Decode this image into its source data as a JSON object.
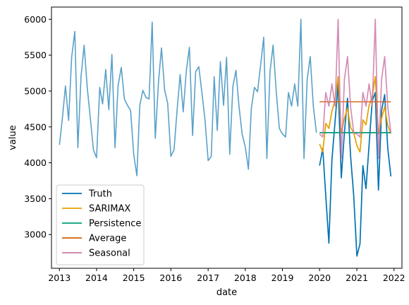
{
  "chart_data": {
    "type": "line",
    "title": "",
    "xlabel": "date",
    "ylabel": "value",
    "x_ticks": [
      "2013",
      "2014",
      "2015",
      "2016",
      "2017",
      "2018",
      "2019",
      "2020",
      "2021",
      "2022"
    ],
    "y_ticks": [
      3000,
      3500,
      4000,
      4500,
      5000,
      5500,
      6000
    ],
    "xlim": [
      "2012-10-15",
      "2022-03-20"
    ],
    "ylim": [
      2530,
      6170
    ],
    "grid": false,
    "legend_position": "lower-left",
    "series": [
      {
        "name": "",
        "color": "#5aa1c8",
        "start": "2013-01",
        "values": [
          4250,
          4640,
          5070,
          4590,
          5470,
          5830,
          4210,
          5200,
          5640,
          5050,
          4620,
          4180,
          4070,
          5050,
          4820,
          5300,
          4740,
          5510,
          4210,
          5080,
          5330,
          4890,
          4800,
          4730,
          4120,
          3820,
          4800,
          5010,
          4910,
          4890,
          5960,
          4340,
          5120,
          5600,
          5010,
          4830,
          4090,
          4180,
          4720,
          5230,
          4710,
          5290,
          5610,
          4380,
          5270,
          5340,
          4970,
          4600,
          4030,
          4090,
          5200,
          4450,
          5410,
          4800,
          5470,
          4120,
          5060,
          5290,
          4780,
          4400,
          4220,
          3910,
          4760,
          5050,
          4990,
          5360,
          5750,
          4060,
          5270,
          5640,
          5000,
          4480,
          4400,
          4360,
          4980,
          4790,
          5100,
          4790,
          6000,
          4060,
          5160,
          5480,
          4780,
          4420
        ]
      },
      {
        "name": "Truth",
        "color": "#0072b2",
        "start": "2020-01",
        "values": [
          3960,
          4200,
          3550,
          2880,
          4040,
          4580,
          5100,
          3790,
          4420,
          4900,
          4090,
          3540,
          2700,
          2870,
          3960,
          3640,
          4250,
          4860,
          4980,
          3620,
          4730,
          4950,
          4200,
          3810
        ]
      },
      {
        "name": "SARIMAX",
        "color": "#e69f00",
        "start": "2020-01",
        "values": [
          4260,
          4150,
          4550,
          4480,
          4720,
          4880,
          5200,
          4410,
          4620,
          4760,
          4490,
          4420,
          4240,
          4150,
          4600,
          4530,
          4800,
          4920,
          5200,
          4400,
          4620,
          4780,
          4520,
          4410
        ]
      },
      {
        "name": "Persistence",
        "color": "#009e73",
        "start": "2020-01",
        "values": [
          4420,
          4420,
          4420,
          4420,
          4420,
          4420,
          4420,
          4420,
          4420,
          4420,
          4420,
          4420,
          4420,
          4420,
          4420,
          4420,
          4420,
          4420,
          4420,
          4420,
          4420,
          4420,
          4420,
          4420
        ]
      },
      {
        "name": "Average",
        "color": "#d55e00",
        "start": "2020-01",
        "values": [
          4850,
          4850,
          4850,
          4850,
          4850,
          4850,
          4850,
          4850,
          4850,
          4850,
          4850,
          4850,
          4850,
          4850,
          4850,
          4850,
          4850,
          4850,
          4850,
          4850,
          4850,
          4850,
          4850,
          4850
        ]
      },
      {
        "name": "Seasonal",
        "color": "#cc79a7",
        "start": "2020-01",
        "values": [
          4400,
          4360,
          4980,
          4790,
          5100,
          4790,
          6000,
          4060,
          5160,
          5480,
          4780,
          4420,
          4400,
          4360,
          4980,
          4790,
          5100,
          4790,
          6000,
          4060,
          5160,
          5480,
          4780,
          4420
        ]
      }
    ]
  }
}
